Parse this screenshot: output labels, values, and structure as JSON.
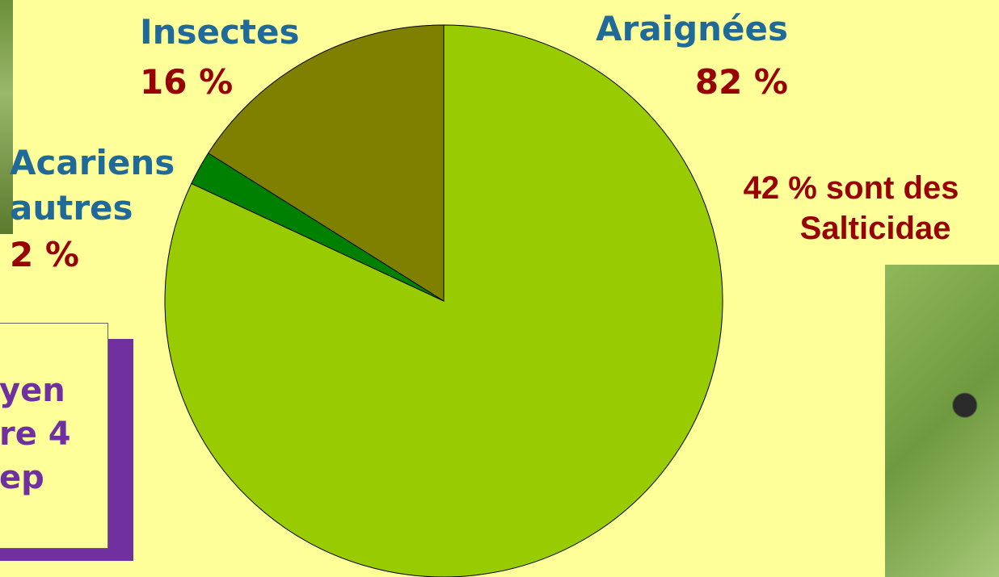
{
  "chart_data": {
    "type": "pie",
    "categories": [
      "Araignées",
      "Acariens autres",
      "Insectes"
    ],
    "values": [
      82,
      2,
      16
    ],
    "value_labels": [
      "82 %",
      "2 %",
      "16 %"
    ],
    "colors": [
      "#99cc00",
      "#008000",
      "#808000"
    ]
  },
  "annotations": {
    "salticidae": [
      "42 % sont des",
      "Salticidae"
    ],
    "box": [
      "yen",
      "re 4",
      "ep"
    ]
  }
}
